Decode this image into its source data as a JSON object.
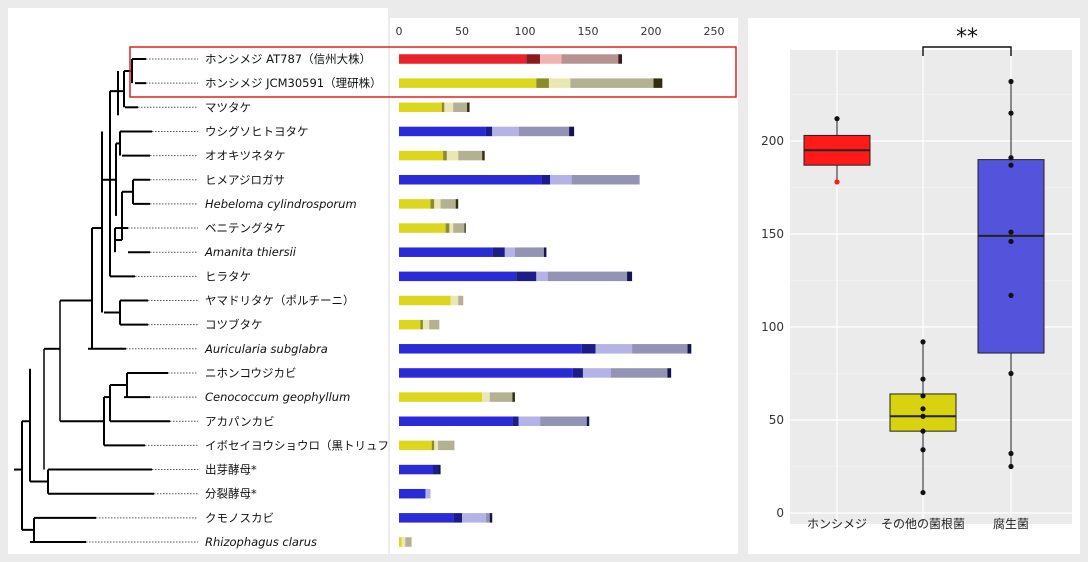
{
  "species": [
    {
      "label": "ホンシメジ AT787（信州大株）",
      "italic": false,
      "type": "highlight1"
    },
    {
      "label": "ホンシメジ JCM30591（理研株）",
      "italic": false,
      "type": "highlight2"
    },
    {
      "label": "マツタケ",
      "italic": false,
      "type": "myc"
    },
    {
      "label": "ウシグソヒトヨタケ",
      "italic": false,
      "type": "sap"
    },
    {
      "label": "オオキツネタケ",
      "italic": false,
      "type": "myc"
    },
    {
      "label": "ヒメアジロガサ",
      "italic": false,
      "type": "sap"
    },
    {
      "label": "Hebeloma cylindrosporum",
      "italic": true,
      "type": "myc"
    },
    {
      "label": "ベニテングタケ",
      "italic": false,
      "type": "myc"
    },
    {
      "label": "Amanita thiersii",
      "italic": true,
      "type": "sap"
    },
    {
      "label": "ヒラタケ",
      "italic": false,
      "type": "sap"
    },
    {
      "label": "ヤマドリタケ（ポルチーニ）",
      "italic": false,
      "type": "myc"
    },
    {
      "label": "コツブタケ",
      "italic": false,
      "type": "myc"
    },
    {
      "label": "Auricularia subglabra",
      "italic": true,
      "type": "sap"
    },
    {
      "label": "ニホンコウジカビ",
      "italic": false,
      "type": "sap"
    },
    {
      "label": "Cenococcum geophyllum",
      "italic": true,
      "type": "myc"
    },
    {
      "label": "アカパンカビ",
      "italic": false,
      "type": "sap"
    },
    {
      "label": "イボセイヨウショウロ（黒トリュフ）",
      "italic": false,
      "type": "myc"
    },
    {
      "label": "出芽酵母*",
      "italic": false,
      "type": "sap"
    },
    {
      "label": "分裂酵母*",
      "italic": false,
      "type": "sap"
    },
    {
      "label": "クモノスカビ",
      "italic": false,
      "type": "sap"
    },
    {
      "label": "Rhizophagus clarus",
      "italic": true,
      "type": "myc"
    }
  ],
  "palettes": {
    "highlight1": [
      "#e8242a",
      "#8b1a1e",
      "#f1b3ae",
      "#b89290",
      "#3a1a1a"
    ],
    "highlight2": [
      "#dcd61e",
      "#8c8a2a",
      "#ebe7b4",
      "#b3b192",
      "#2f2f10"
    ],
    "myc": [
      "#dcd61e",
      "#8c8a2a",
      "#ebe7b4",
      "#b3b192",
      "#2f2f10"
    ],
    "sap": [
      "#2a2ad6",
      "#1c1c8a",
      "#b3b3e6",
      "#9393b5",
      "#141450"
    ]
  },
  "chart_data": [
    {
      "type": "bar",
      "stacked": true,
      "orientation": "horizontal",
      "xlim": [
        0,
        260
      ],
      "xticks": [
        0,
        50,
        100,
        150,
        200,
        250
      ],
      "categories": [
        "ホンシメジ AT787（信州大株）",
        "ホンシメジ JCM30591（理研株）",
        "マツタケ",
        "ウシグソヒトヨタケ",
        "オオキツネタケ",
        "ヒメアジロガサ",
        "Hebeloma cylindrosporum",
        "ベニテングタケ",
        "Amanita thiersii",
        "ヒラタケ",
        "ヤマドリタケ（ポルチーニ）",
        "コツブタケ",
        "Auricularia subglabra",
        "ニホンコウジカビ",
        "Cenococcum geophyllum",
        "アカパンカビ",
        "イボセイヨウショウロ（黒トリュフ）",
        "出芽酵母*",
        "分裂酵母*",
        "クモノスカビ",
        "Rhizophagus clarus"
      ],
      "segments": [
        [
          101,
          11,
          17,
          45,
          3
        ],
        [
          109,
          10,
          17,
          66,
          7
        ],
        [
          34,
          2,
          7,
          11,
          2
        ],
        [
          69,
          5,
          21,
          40,
          4
        ],
        [
          35,
          3,
          9,
          19,
          2
        ],
        [
          113,
          7,
          17,
          54,
          0
        ],
        [
          25,
          3,
          5,
          12,
          2
        ],
        [
          37,
          3,
          3,
          9,
          1
        ],
        [
          74,
          10,
          8,
          23,
          2
        ],
        [
          93,
          16,
          9,
          63,
          4
        ],
        [
          41,
          0,
          6,
          4,
          0
        ],
        [
          17,
          2,
          5,
          8,
          0
        ],
        [
          145,
          11,
          29,
          44,
          3
        ],
        [
          138,
          8,
          22,
          45,
          3
        ],
        [
          66,
          0,
          6,
          18,
          2
        ],
        [
          90,
          5,
          17,
          37,
          2
        ],
        [
          26,
          2,
          3,
          13,
          0
        ],
        [
          27,
          4,
          0,
          0,
          2
        ],
        [
          21,
          0,
          4,
          0,
          0
        ],
        [
          43,
          7,
          19,
          3,
          2
        ],
        [
          2,
          0,
          3,
          5,
          0
        ]
      ]
    },
    {
      "type": "box",
      "categories": [
        "ホンシメジ",
        "その他の菌根菌",
        "腐生菌"
      ],
      "ylim": [
        0,
        240
      ],
      "yticks": [
        0,
        50,
        100,
        150,
        200
      ],
      "colors": [
        "#ff1a1a",
        "#d8d30e",
        "#5353db"
      ],
      "boxes": [
        {
          "q1": 187,
          "median": 195,
          "q3": 203,
          "whisker_low": 178,
          "whisker_high": 212
        },
        {
          "q1": 44,
          "median": 52,
          "q3": 64,
          "whisker_low": 11,
          "whisker_high": 92
        },
        {
          "q1": 86,
          "median": 149,
          "q3": 190,
          "whisker_low": 25,
          "whisker_high": 232
        }
      ],
      "points": [
        [
          212,
          178
        ],
        [
          92,
          72,
          63,
          56,
          52,
          44,
          34,
          11
        ],
        [
          232,
          215,
          191,
          187,
          151,
          146,
          117,
          75,
          32,
          25
        ]
      ],
      "outliers": [
        [
          178
        ],
        [],
        []
      ],
      "significance": {
        "pair": [
          1,
          2
        ],
        "label": "**"
      }
    }
  ]
}
